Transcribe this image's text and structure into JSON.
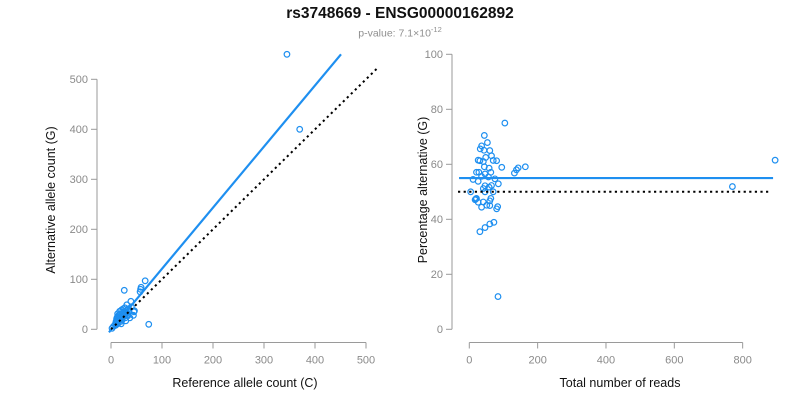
{
  "header": {
    "title": "rs3748669 - ENSG00000162892",
    "pvalue_base": "p-value: 7.1×10",
    "pvalue_exponent": "-12"
  },
  "colors": {
    "accent_blue": "#1E8FF0",
    "identity_black": "#000000",
    "axis_line": "#9a9a9a",
    "tick_label": "#8a8a8a",
    "axis_title": "#111111",
    "point_stroke": "#1E8FF0"
  },
  "chart_data": [
    {
      "type": "scatter",
      "title": "",
      "xlabel": "Reference allele count (C)",
      "ylabel": "Alternative allele count (G)",
      "xticks": [
        0,
        100,
        200,
        300,
        400,
        500
      ],
      "yticks": [
        0,
        100,
        200,
        300,
        400,
        500
      ],
      "xlim": [
        0,
        540
      ],
      "ylim": [
        0,
        555
      ],
      "grid": false,
      "legend": "none",
      "points": [
        [
          13,
          31
        ],
        [
          17,
          36
        ],
        [
          12,
          24
        ],
        [
          15,
          28
        ],
        [
          11,
          21
        ],
        [
          21,
          39
        ],
        [
          10,
          16
        ],
        [
          16,
          25
        ],
        [
          27,
          43
        ],
        [
          24,
          41
        ],
        [
          18,
          30
        ],
        [
          12,
          19
        ],
        [
          31,
          49
        ],
        [
          9,
          12
        ],
        [
          18,
          26
        ],
        [
          24,
          34
        ],
        [
          39,
          56
        ],
        [
          59,
          84
        ],
        [
          12,
          16
        ],
        [
          20,
          26
        ],
        [
          27,
          36
        ],
        [
          16,
          20
        ],
        [
          25,
          31
        ],
        [
          34,
          41
        ],
        [
          12,
          14
        ],
        [
          22,
          24
        ],
        [
          31,
          34
        ],
        [
          40,
          45
        ],
        [
          20,
          21
        ],
        [
          28,
          30
        ],
        [
          11,
          10
        ],
        [
          23,
          23
        ],
        [
          35,
          35
        ],
        [
          9,
          8
        ],
        [
          32,
          28
        ],
        [
          22,
          19
        ],
        [
          33,
          27
        ],
        [
          45,
          35
        ],
        [
          10,
          9
        ],
        [
          33,
          30
        ],
        [
          14,
          12
        ],
        [
          20,
          16
        ],
        [
          28,
          23
        ],
        [
          46,
          37
        ],
        [
          37,
          23
        ],
        [
          44,
          28
        ],
        [
          29,
          17
        ],
        [
          20,
          11
        ],
        [
          2,
          2
        ],
        [
          5,
          6
        ],
        [
          58,
          80
        ],
        [
          345,
          550
        ],
        [
          370,
          400
        ],
        [
          26,
          78
        ],
        [
          67,
          97
        ],
        [
          57,
          75
        ],
        [
          74,
          10
        ]
      ],
      "lines": [
        {
          "name": "fit-line",
          "x1": -4,
          "y1": -6,
          "x2": 451,
          "y2": 550,
          "color": "accent",
          "style": "solid"
        },
        {
          "name": "identity-line",
          "x1": 0,
          "y1": 0,
          "x2": 524,
          "y2": 524,
          "color": "black",
          "style": "dotted"
        }
      ]
    },
    {
      "type": "scatter",
      "title": "",
      "xlabel": "Total number of reads",
      "ylabel": "Percentage alternative (G)",
      "xticks": [
        0,
        200,
        400,
        600,
        800
      ],
      "yticks": [
        0,
        20,
        40,
        60,
        80,
        100
      ],
      "xlim": [
        0,
        900
      ],
      "ylim": [
        0,
        100
      ],
      "grid": false,
      "legend": "none",
      "points": [
        [
          44,
          70.5
        ],
        [
          53,
          67.9
        ],
        [
          36,
          66.7
        ],
        [
          43,
          65.1
        ],
        [
          32,
          65.6
        ],
        [
          60,
          65
        ],
        [
          26,
          61.5
        ],
        [
          41,
          61
        ],
        [
          70,
          61.4
        ],
        [
          65,
          63.1
        ],
        [
          48,
          62.5
        ],
        [
          31,
          61.3
        ],
        [
          80,
          61.3
        ],
        [
          21,
          57.1
        ],
        [
          44,
          59.1
        ],
        [
          58,
          58.6
        ],
        [
          95,
          58.9
        ],
        [
          143,
          58.7
        ],
        [
          28,
          57.1
        ],
        [
          46,
          56.5
        ],
        [
          63,
          57.1
        ],
        [
          36,
          55.6
        ],
        [
          56,
          55.4
        ],
        [
          75,
          54.7
        ],
        [
          26,
          53.8
        ],
        [
          46,
          52.2
        ],
        [
          65,
          52.3
        ],
        [
          85,
          52.9
        ],
        [
          41,
          51.2
        ],
        [
          58,
          51.7
        ],
        [
          21,
          47.6
        ],
        [
          46,
          50
        ],
        [
          70,
          50
        ],
        [
          17,
          47.1
        ],
        [
          60,
          46.7
        ],
        [
          41,
          46.3
        ],
        [
          60,
          45
        ],
        [
          80,
          43.8
        ],
        [
          19,
          47.4
        ],
        [
          63,
          47.6
        ],
        [
          26,
          46.2
        ],
        [
          36,
          44.4
        ],
        [
          51,
          45.1
        ],
        [
          83,
          44.6
        ],
        [
          60,
          38.3
        ],
        [
          72,
          38.9
        ],
        [
          46,
          37
        ],
        [
          31,
          35.5
        ],
        [
          4,
          50
        ],
        [
          11,
          54.5
        ],
        [
          138,
          58
        ],
        [
          895,
          61.5
        ],
        [
          770,
          51.9
        ],
        [
          104,
          75
        ],
        [
          164,
          59.1
        ],
        [
          132,
          56.8
        ],
        [
          84,
          11.9
        ]
      ],
      "lines": [
        {
          "name": "mean-line",
          "x1": -30,
          "y1": 55,
          "x2": 889,
          "y2": 55,
          "color": "accent",
          "style": "solid"
        },
        {
          "name": "null-line",
          "x1": -33,
          "y1": 50,
          "x2": 877,
          "y2": 50,
          "color": "black",
          "style": "dotted"
        }
      ]
    }
  ]
}
